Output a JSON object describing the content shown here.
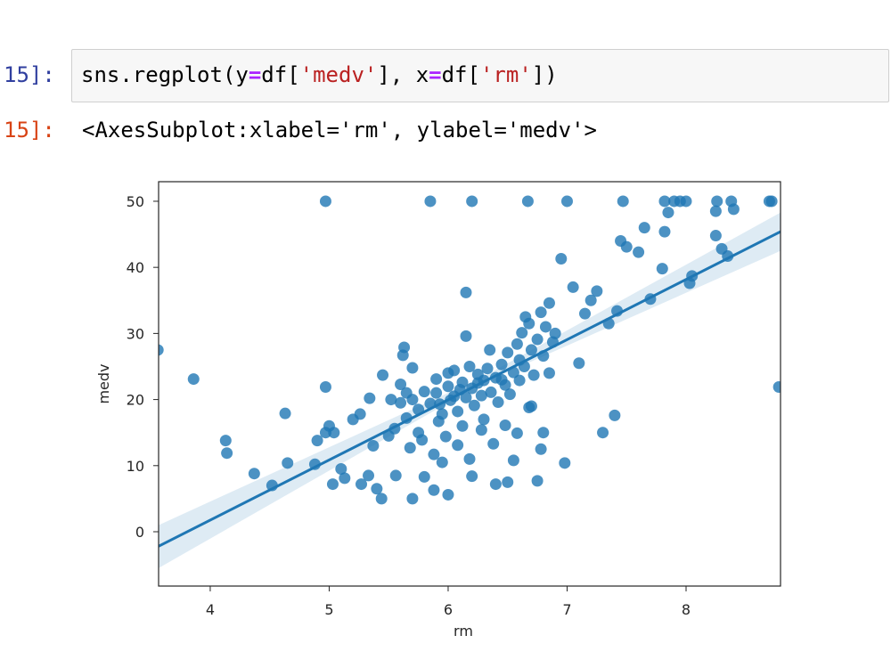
{
  "input": {
    "prompt": "15]:",
    "code": [
      "sns.regplot(y",
      "=",
      "df[",
      "'medv'",
      "], x",
      "=",
      "df[",
      "'rm'",
      "])"
    ]
  },
  "output": {
    "prompt": "15]:",
    "text": "<AxesSubplot:xlabel='rm', ylabel='medv'>"
  },
  "chart_data": {
    "type": "scatter",
    "x_label": "rm",
    "y_label": "medv",
    "xlim": [
      3.566,
      8.794
    ],
    "ylim": [
      -8.22,
      52.96
    ],
    "xticks": [
      4,
      5,
      6,
      7,
      8
    ],
    "yticks": [
      0,
      10,
      20,
      30,
      40,
      50
    ],
    "grid": false,
    "series": [
      {
        "color": "#1f77b4",
        "x": [
          3.56,
          3.86,
          4.13,
          4.14,
          4.37,
          4.52,
          4.63,
          4.65,
          4.88,
          4.9,
          4.97,
          4.97,
          4.97,
          5.0,
          5.04,
          5.03,
          5.1,
          5.13,
          5.2,
          5.26,
          5.27,
          5.33,
          5.34,
          5.37,
          5.4,
          5.44,
          5.45,
          5.5,
          5.56,
          5.6,
          5.62,
          5.63,
          5.7,
          5.75,
          5.8,
          5.85,
          5.88,
          5.9,
          5.93,
          5.95,
          6.0,
          6.0,
          6.05,
          6.1,
          6.15,
          6.2,
          6.15,
          6.2,
          6.25,
          6.3,
          6.35,
          6.4,
          6.45,
          6.5,
          6.55,
          6.6,
          6.65,
          6.67,
          6.7,
          6.75,
          6.8,
          6.85,
          6.9,
          6.95,
          7.0,
          6.98,
          7.05,
          7.1,
          7.15,
          7.2,
          7.25,
          7.3,
          7.35,
          7.4,
          7.42,
          7.45,
          7.47,
          7.5,
          7.6,
          7.65,
          7.7,
          7.8,
          7.82,
          7.82,
          7.85,
          7.9,
          7.95,
          8.0,
          8.03,
          8.05,
          8.26,
          8.25,
          8.25,
          8.3,
          8.35,
          8.38,
          8.4,
          8.7,
          8.72,
          8.78,
          5.7,
          5.75,
          5.8,
          5.85,
          5.9,
          5.95,
          6.0,
          6.02,
          6.05,
          6.08,
          6.12,
          6.15,
          6.18,
          6.2,
          6.22,
          6.25,
          6.28,
          6.3,
          6.33,
          6.36,
          6.4,
          6.42,
          6.45,
          6.48,
          6.5,
          6.52,
          6.55,
          6.58,
          6.6,
          6.62,
          6.64,
          6.68,
          6.7,
          6.72,
          6.75,
          6.78,
          6.8,
          6.82,
          6.85,
          6.88,
          5.65,
          5.6,
          5.55,
          5.52,
          5.68,
          5.78,
          5.88,
          5.98,
          6.08,
          6.18,
          6.28,
          6.38,
          6.48,
          6.58,
          6.68,
          6.78,
          5.7,
          5.65,
          5.92,
          6.12
        ],
        "values": [
          27.5,
          23.1,
          13.8,
          11.9,
          8.8,
          7.0,
          17.9,
          10.4,
          10.2,
          13.8,
          50,
          21.9,
          15.0,
          16.0,
          15.0,
          7.2,
          9.5,
          8.1,
          17.0,
          17.8,
          7.2,
          8.5,
          20.2,
          13.0,
          6.5,
          5.0,
          23.7,
          14.5,
          8.5,
          19.5,
          26.7,
          27.9,
          5.0,
          15.0,
          8.3,
          50,
          6.3,
          21.0,
          19.3,
          10.5,
          24.0,
          5.6,
          20.5,
          21.5,
          36.2,
          50,
          29.6,
          8.4,
          22.5,
          17.0,
          27.5,
          7.2,
          23.0,
          7.5,
          10.8,
          26.0,
          32.5,
          50,
          19.0,
          7.7,
          15.0,
          24.0,
          30.0,
          41.3,
          50,
          10.4,
          37.0,
          25.5,
          33.0,
          35.0,
          36.4,
          15.0,
          31.5,
          17.6,
          33.4,
          44.0,
          50,
          43.1,
          42.3,
          46.0,
          35.2,
          39.8,
          45.4,
          50,
          48.3,
          50,
          50,
          50,
          37.6,
          38.7,
          50,
          48.5,
          44.8,
          42.8,
          41.7,
          50,
          48.8,
          50,
          50,
          21.9,
          20,
          18.5,
          21.2,
          19.4,
          23.1,
          17.8,
          22.0,
          19.9,
          24.4,
          18.2,
          22.6,
          20.3,
          25.0,
          21.7,
          19.1,
          23.8,
          20.6,
          22.9,
          24.7,
          21.1,
          23.3,
          19.6,
          25.3,
          22.2,
          27.1,
          20.8,
          24.1,
          28.4,
          22.9,
          30.1,
          25.0,
          31.5,
          27.5,
          23.7,
          29.1,
          33.2,
          26.6,
          31.0,
          34.6,
          28.7,
          17.2,
          22.3,
          15.6,
          20.0,
          12.7,
          13.9,
          11.7,
          14.4,
          13.1,
          11.0,
          15.4,
          13.3,
          16.1,
          14.9,
          18.8,
          12.5,
          24.8,
          21.0,
          16.7,
          16.0
        ]
      },
      {
        "type": "line",
        "color": "#1f77b4",
        "x": [
          3.566,
          8.794
        ],
        "values": [
          -2.2,
          45.4
        ],
        "band": {
          "x": [
            3.566,
            6.28,
            8.794
          ],
          "lower": [
            -5.5,
            22.4,
            42.5
          ],
          "upper": [
            1.0,
            23.3,
            48.3
          ]
        }
      }
    ]
  }
}
